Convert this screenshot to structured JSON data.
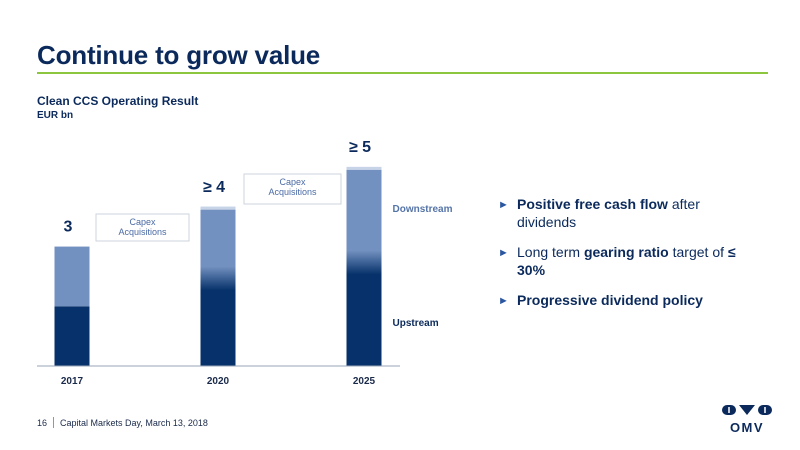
{
  "slide": {
    "title": "Continue to grow value",
    "footer_page": "16",
    "footer_text": "Capital Markets Day, March 13, 2018",
    "logo_text": "OMV"
  },
  "chart_data": {
    "type": "bar",
    "stacked": true,
    "title": "Clean CCS Operating Result",
    "unit": "EUR bn",
    "categories": [
      "2017",
      "2020",
      "2025"
    ],
    "series": [
      {
        "name": "Upstream",
        "values": [
          1.5,
          2.2,
          2.6
        ]
      },
      {
        "name": "Downstream",
        "values": [
          1.5,
          1.8,
          2.4
        ]
      }
    ],
    "totals_labels": [
      "3",
      "≥ 4",
      "≥ 5"
    ],
    "ylim": [
      0,
      5.3
    ],
    "annotations": [
      {
        "text": [
          "Capex",
          "Acquisitions"
        ],
        "between": [
          "2017",
          "2020"
        ]
      },
      {
        "text": [
          "Capex",
          "Acquisitions"
        ],
        "between": [
          "2020",
          "2025"
        ]
      }
    ],
    "colors": {
      "Upstream": "#06316a",
      "Downstream": "#7391c0"
    }
  },
  "bullets": [
    {
      "parts": [
        {
          "t": "Positive free cash flow",
          "b": true
        },
        {
          "t": " after dividends",
          "b": false
        }
      ]
    },
    {
      "parts": [
        {
          "t": "Long term ",
          "b": false
        },
        {
          "t": "gearing ratio",
          "b": true
        },
        {
          "t": " target of ",
          "b": false
        },
        {
          "t": "≤ 30%",
          "b": true
        }
      ]
    },
    {
      "parts": [
        {
          "t": "Progressive dividend policy",
          "b": true
        }
      ]
    }
  ],
  "bullet_arrow": "►"
}
